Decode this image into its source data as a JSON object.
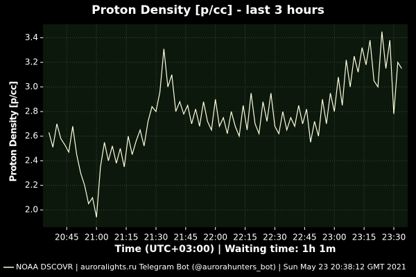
{
  "chart_data": {
    "type": "line",
    "title": "Proton Density [p/cc] - last 3 hours",
    "x_label": "Time (UTC+03:00) | Waiting time: 1h 1m",
    "y_label": "Proton Density [p/cc]",
    "footer": "| auroralights.ru Telegram Bot (@aurorahunters_bot) | Sun May 23 20:38:12 GMT 2021",
    "background": "#0c180c",
    "grid": true,
    "xlim": [
      "20:33",
      "23:37"
    ],
    "xticks": [
      "20:45",
      "21:00",
      "21:15",
      "21:30",
      "21:45",
      "22:00",
      "22:15",
      "22:30",
      "22:45",
      "23:00",
      "23:15",
      "23:30"
    ],
    "ylim": [
      1.86,
      3.51
    ],
    "yticks": [
      {
        "value": 2,
        "label": "2.0"
      },
      {
        "value": 2.2,
        "label": "2.2"
      },
      {
        "value": 2.4,
        "label": "2.4"
      },
      {
        "value": 2.6,
        "label": "2.6"
      },
      {
        "value": 2.8,
        "label": "2.8"
      },
      {
        "value": 3,
        "label": "3.0"
      },
      {
        "value": 3.2,
        "label": "3.2"
      },
      {
        "value": 3.4,
        "label": "3.4"
      }
    ],
    "x": [
      "20:36",
      "20:38",
      "20:40",
      "20:42",
      "20:44",
      "20:46",
      "20:48",
      "20:50",
      "20:52",
      "20:54",
      "20:56",
      "20:58",
      "21:00",
      "21:02",
      "21:04",
      "21:06",
      "21:08",
      "21:10",
      "21:12",
      "21:14",
      "21:16",
      "21:18",
      "21:20",
      "21:22",
      "21:24",
      "21:26",
      "21:28",
      "21:30",
      "21:32",
      "21:34",
      "21:36",
      "21:38",
      "21:40",
      "21:42",
      "21:44",
      "21:46",
      "21:48",
      "21:50",
      "21:52",
      "21:54",
      "21:56",
      "21:58",
      "22:00",
      "22:02",
      "22:04",
      "22:06",
      "22:08",
      "22:10",
      "22:12",
      "22:14",
      "22:16",
      "22:18",
      "22:20",
      "22:22",
      "22:24",
      "22:26",
      "22:28",
      "22:30",
      "22:32",
      "22:34",
      "22:36",
      "22:38",
      "22:40",
      "22:42",
      "22:44",
      "22:46",
      "22:48",
      "22:50",
      "22:52",
      "22:54",
      "22:56",
      "22:58",
      "23:00",
      "23:02",
      "23:04",
      "23:06",
      "23:08",
      "23:10",
      "23:12",
      "23:14",
      "23:16",
      "23:18",
      "23:20",
      "23:22",
      "23:24",
      "23:26",
      "23:28",
      "23:30",
      "23:32",
      "23:34"
    ],
    "series": [
      {
        "name": "NOAA DSCOVR",
        "color": "#ffffe0",
        "values": [
          2.63,
          2.51,
          2.7,
          2.58,
          2.53,
          2.47,
          2.68,
          2.45,
          2.3,
          2.2,
          2.05,
          2.1,
          1.94,
          2.35,
          2.55,
          2.4,
          2.52,
          2.38,
          2.5,
          2.35,
          2.6,
          2.45,
          2.56,
          2.65,
          2.52,
          2.72,
          2.84,
          2.8,
          2.96,
          3.31,
          3.0,
          3.1,
          2.8,
          2.88,
          2.78,
          2.85,
          2.7,
          2.82,
          2.68,
          2.88,
          2.72,
          2.65,
          2.9,
          2.68,
          2.75,
          2.62,
          2.8,
          2.68,
          2.6,
          2.85,
          2.65,
          2.95,
          2.7,
          2.62,
          2.88,
          2.72,
          2.95,
          2.68,
          2.62,
          2.8,
          2.65,
          2.75,
          2.68,
          2.85,
          2.7,
          2.82,
          2.55,
          2.72,
          2.6,
          2.9,
          2.7,
          2.95,
          2.8,
          3.08,
          2.85,
          3.22,
          3.0,
          3.25,
          3.12,
          3.32,
          3.18,
          3.38,
          3.05,
          3.0,
          3.45,
          3.15,
          3.38,
          2.78,
          3.2,
          3.15
        ]
      }
    ]
  }
}
